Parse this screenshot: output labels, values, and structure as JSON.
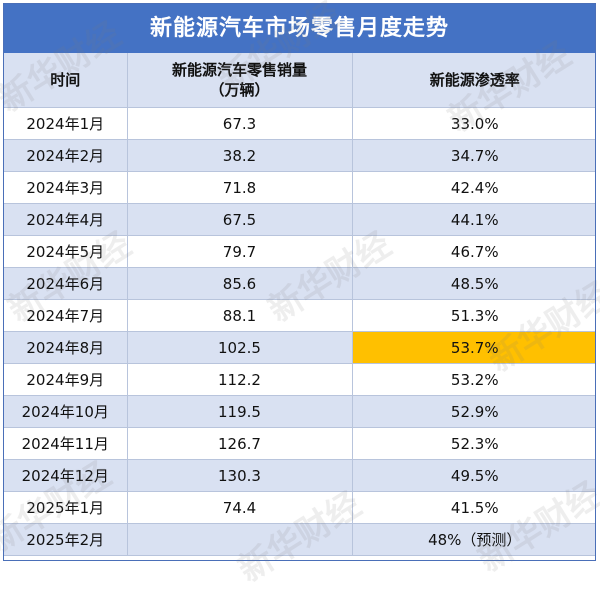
{
  "title": "新能源汽车市场零售月度走势",
  "headers": {
    "time": "时间",
    "sales_line1": "新能源汽车零售销量",
    "sales_line2": "（万辆）",
    "rate": "新能源渗透率"
  },
  "watermark": "新华财经",
  "highlight_color": "#ffc000",
  "chart_data": {
    "type": "table",
    "title": "新能源汽车市场零售月度走势",
    "columns": [
      "时间",
      "新能源汽车零售销量（万辆）",
      "新能源渗透率"
    ],
    "rows": [
      [
        "2024年1月",
        "67.3",
        "33.0%"
      ],
      [
        "2024年2月",
        "38.2",
        "34.7%"
      ],
      [
        "2024年3月",
        "71.8",
        "42.4%"
      ],
      [
        "2024年4月",
        "67.5",
        "44.1%"
      ],
      [
        "2024年5月",
        "79.7",
        "46.7%"
      ],
      [
        "2024年6月",
        "85.6",
        "48.5%"
      ],
      [
        "2024年7月",
        "88.1",
        "51.3%"
      ],
      [
        "2024年8月",
        "102.5",
        "53.7%"
      ],
      [
        "2024年9月",
        "112.2",
        "53.2%"
      ],
      [
        "2024年10月",
        "119.5",
        "52.9%"
      ],
      [
        "2024年11月",
        "126.7",
        "52.3%"
      ],
      [
        "2024年12月",
        "130.3",
        "49.5%"
      ],
      [
        "2025年1月",
        "74.4",
        "41.5%"
      ],
      [
        "2025年2月",
        "",
        "48%（预测）"
      ]
    ],
    "highlight": {
      "row": 7,
      "col": 2
    }
  }
}
